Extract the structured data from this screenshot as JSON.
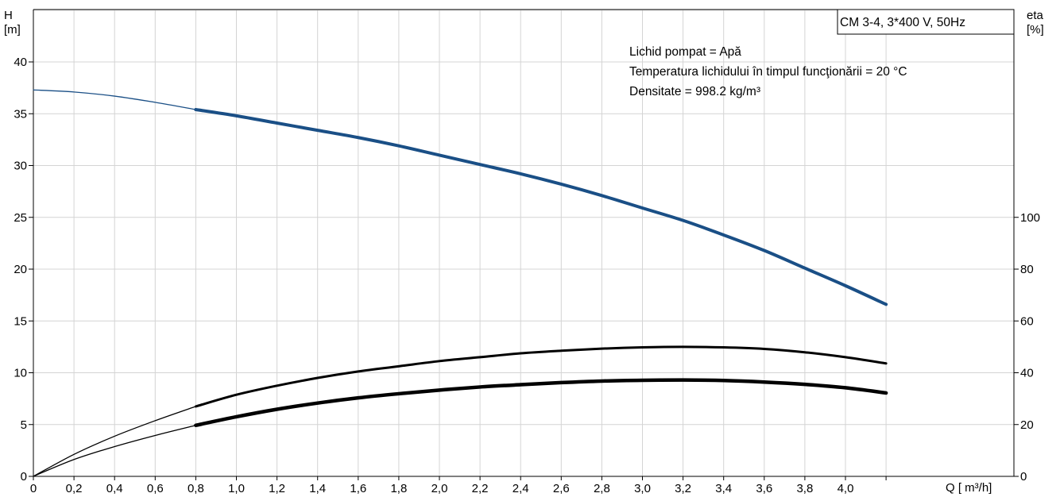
{
  "chart_data": {
    "type": "line",
    "title": "CM 3-4, 3*400 V, 50Hz",
    "info_lines": [
      "Lichid pompat = Apă",
      "Temperatura lichidului în timpul funcţionării = 20  °C",
      "Densitate = 998.2  kg/m³"
    ],
    "x_axis": {
      "label": "Q [ m³/h]",
      "range": [
        0,
        4.3
      ],
      "ticks": [
        0,
        0.2,
        0.4,
        0.6,
        0.8,
        1.0,
        1.2,
        1.4,
        1.6,
        1.8,
        2.0,
        2.2,
        2.4,
        2.6,
        2.8,
        3.0,
        3.2,
        3.4,
        3.6,
        3.8,
        4.0
      ],
      "tick_labels": [
        "0",
        "0,2",
        "0,4",
        "0,6",
        "0,8",
        "1,0",
        "1,2",
        "1,4",
        "1,6",
        "1,8",
        "2,0",
        "2,2",
        "2,4",
        "2,6",
        "2,8",
        "3,0",
        "3,2",
        "3,4",
        "3,6",
        "3,8",
        "4,0"
      ]
    },
    "y_axis_left": {
      "label_line1": "H",
      "label_line2": "[m]",
      "range": [
        0,
        45
      ],
      "ticks": [
        0,
        5,
        10,
        15,
        20,
        25,
        30,
        35,
        40
      ],
      "tick_labels": [
        "0",
        "5",
        "10",
        "15",
        "20",
        "25",
        "30",
        "35",
        "40"
      ]
    },
    "y_axis_right": {
      "label_line1": "eta",
      "label_line2": "[%]",
      "range": [
        0,
        180
      ],
      "ticks": [
        0,
        20,
        40,
        60,
        80,
        100
      ],
      "tick_labels": [
        "0",
        "20",
        "40",
        "60",
        "80",
        "100"
      ]
    },
    "grid": true,
    "operating_range_start_q": 0.8,
    "series": [
      {
        "axis": "left",
        "color": "#1a4f86",
        "x": [
          0,
          0.2,
          0.4,
          0.6,
          0.8,
          1.0,
          1.2,
          1.4,
          1.6,
          1.8,
          2.0,
          2.2,
          2.4,
          2.6,
          2.8,
          3.0,
          3.2,
          3.4,
          3.6,
          3.8,
          4.0,
          4.2
        ],
        "y": [
          37.3,
          37.1,
          36.7,
          36.1,
          35.4,
          34.8,
          34.1,
          33.4,
          32.7,
          31.9,
          31.0,
          30.1,
          29.2,
          28.2,
          27.1,
          25.9,
          24.7,
          23.3,
          21.8,
          20.1,
          18.4,
          16.6
        ]
      },
      {
        "axis": "right",
        "color": "#000000",
        "x": [
          0,
          0.2,
          0.4,
          0.6,
          0.8,
          1.0,
          1.2,
          1.4,
          1.6,
          1.8,
          2.0,
          2.2,
          2.4,
          2.6,
          2.8,
          3.0,
          3.2,
          3.4,
          3.6,
          3.8,
          4.0,
          4.2
        ],
        "y": [
          0,
          8.5,
          15.5,
          21.5,
          27.0,
          31.5,
          35.0,
          38.0,
          40.5,
          42.5,
          44.5,
          46.0,
          47.5,
          48.5,
          49.3,
          49.8,
          50.0,
          49.8,
          49.2,
          47.9,
          46.0,
          43.6
        ]
      },
      {
        "axis": "right",
        "color": "#000000",
        "x": [
          0,
          0.2,
          0.4,
          0.6,
          0.8,
          1.0,
          1.2,
          1.4,
          1.6,
          1.8,
          2.0,
          2.2,
          2.4,
          2.6,
          2.8,
          3.0,
          3.2,
          3.4,
          3.6,
          3.8,
          4.0,
          4.2
        ],
        "y": [
          0,
          6.5,
          11.5,
          15.8,
          19.7,
          23.0,
          25.9,
          28.3,
          30.3,
          31.9,
          33.3,
          34.5,
          35.4,
          36.2,
          36.8,
          37.1,
          37.2,
          37.0,
          36.4,
          35.5,
          34.2,
          32.2
        ]
      }
    ]
  }
}
